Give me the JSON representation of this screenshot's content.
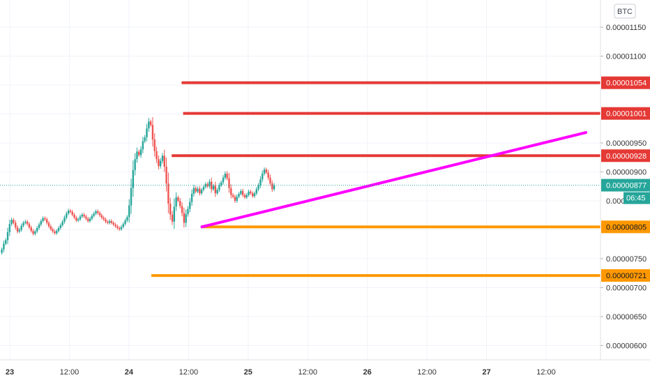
{
  "currency_label": "BTC",
  "colors": {
    "up": "#26a69a",
    "down": "#ef5350",
    "resistance": "#e53935",
    "support": "#ff9800",
    "trend": "#ff00ff",
    "price_tag": "#26a69a",
    "grid": "#f0f3fa",
    "axis_text": "#333333"
  },
  "chart_data": {
    "type": "candlestick",
    "title": "",
    "y_axis_ticks": [
      "0.00001150",
      "0.00001100",
      "0.00000950",
      "0.00000900",
      "0.00000750",
      "0.00000700",
      "0.00000650",
      "0.00000600"
    ],
    "y_axis_partial_tick": "0.0000",
    "x_axis_ticks": [
      {
        "label": "23",
        "bold": true,
        "hour": 0
      },
      {
        "label": "12:00",
        "bold": false,
        "hour": 12
      },
      {
        "label": "24",
        "bold": true,
        "hour": 24
      },
      {
        "label": "12:00",
        "bold": false,
        "hour": 36
      },
      {
        "label": "25",
        "bold": true,
        "hour": 48
      },
      {
        "label": "12:00",
        "bold": false,
        "hour": 60
      },
      {
        "label": "26",
        "bold": true,
        "hour": 72
      },
      {
        "label": "12:00",
        "bold": false,
        "hour": 84
      },
      {
        "label": "27",
        "bold": true,
        "hour": 96
      },
      {
        "label": "12:00",
        "bold": false,
        "hour": 108
      }
    ],
    "horizontal_levels": [
      {
        "label": "0.00001054",
        "value": 1.054e-05,
        "kind": "resistance",
        "from_hour": 34.6
      },
      {
        "label": "0.00001001",
        "value": 1.001e-05,
        "kind": "resistance",
        "from_hour": 34.9
      },
      {
        "label": "0.00000928",
        "value": 9.28e-06,
        "kind": "resistance",
        "from_hour": 32.6
      },
      {
        "label": "0.00000805",
        "value": 8.05e-06,
        "kind": "support",
        "from_hour": 38.5
      },
      {
        "label": "0.00000721",
        "value": 7.21e-06,
        "kind": "support",
        "from_hour": 28.5
      }
    ],
    "trend_line": {
      "from": {
        "hour": 38.7,
        "value": 8.05e-06
      },
      "to": {
        "hour": 116,
        "value": 9.68e-06
      }
    },
    "current_price": {
      "label": "0.00000877",
      "value": 8.77e-06
    },
    "countdown": "06:45",
    "candles": {
      "start_hour": -1.6,
      "hours_per_candle": 0.3945,
      "open": 7.6e-06,
      "closes": [
        7.66e-06,
        7.76e-06,
        7.82e-06,
        7.96e-06,
        8.1e-06,
        8.17e-06,
        8.12e-06,
        8.04e-06,
        7.97e-06,
        8e-06,
        8.07e-06,
        8.12e-06,
        8.14e-06,
        8.1e-06,
        8.04e-06,
        7.98e-06,
        7.93e-06,
        7.97e-06,
        8.03e-06,
        8.09e-06,
        8.15e-06,
        8.2e-06,
        8.18e-06,
        8.12e-06,
        8.06e-06,
        8.01e-06,
        7.97e-06,
        7.94e-06,
        7.98e-06,
        8.03e-06,
        8.08e-06,
        8.14e-06,
        8.21e-06,
        8.28e-06,
        8.33e-06,
        8.31e-06,
        8.26e-06,
        8.21e-06,
        8.16e-06,
        8.18e-06,
        8.23e-06,
        8.26e-06,
        8.23e-06,
        8.19e-06,
        8.15e-06,
        8.19e-06,
        8.24e-06,
        8.28e-06,
        8.32e-06,
        8.29e-06,
        8.25e-06,
        8.21e-06,
        8.18e-06,
        8.14e-06,
        8.12e-06,
        8.15e-06,
        8.12e-06,
        8.09e-06,
        8.06e-06,
        8.03e-06,
        8.01e-06,
        8.05e-06,
        8.1e-06,
        8.16e-06,
        8.22e-06,
        8.42e-06,
        8.72e-06,
        9.03e-06,
        9.22e-06,
        9.35e-06,
        9.29e-06,
        9.39e-06,
        9.53e-06,
        9.6e-06,
        9.75e-06,
        9.87e-06,
        9.81e-06,
        9.56e-06,
        9.36e-06,
        9.22e-06,
        9.1e-06,
        9.19e-06,
        9.28e-06,
        9.09e-06,
        8.8e-06,
        8.45e-06,
        8.26e-06,
        8.14e-06,
        8.4e-06,
        8.56e-06,
        8.5e-06,
        8.41e-06,
        8.29e-06,
        8.12e-06,
        8.27e-06,
        8.36e-06,
        8.48e-06,
        8.62e-06,
        8.72e-06,
        8.66e-06,
        8.71e-06,
        8.63e-06,
        8.69e-06,
        8.74e-06,
        8.79e-06,
        8.75e-06,
        8.83e-06,
        8.7e-06,
        8.76e-06,
        8.63e-06,
        8.69e-06,
        8.77e-06,
        8.82e-06,
        8.9e-06,
        8.97e-06,
        8.89e-06,
        8.72e-06,
        8.6e-06,
        8.57e-06,
        8.5e-06,
        8.57e-06,
        8.62e-06,
        8.67e-06,
        8.6e-06,
        8.56e-06,
        8.6e-06,
        8.66e-06,
        8.63e-06,
        8.58e-06,
        8.63e-06,
        8.7e-06,
        8.77e-06,
        8.87e-06,
        8.97e-06,
        9.04e-06,
        8.99e-06,
        8.9e-06,
        8.8e-06,
        8.7e-06,
        8.77e-06
      ]
    }
  }
}
